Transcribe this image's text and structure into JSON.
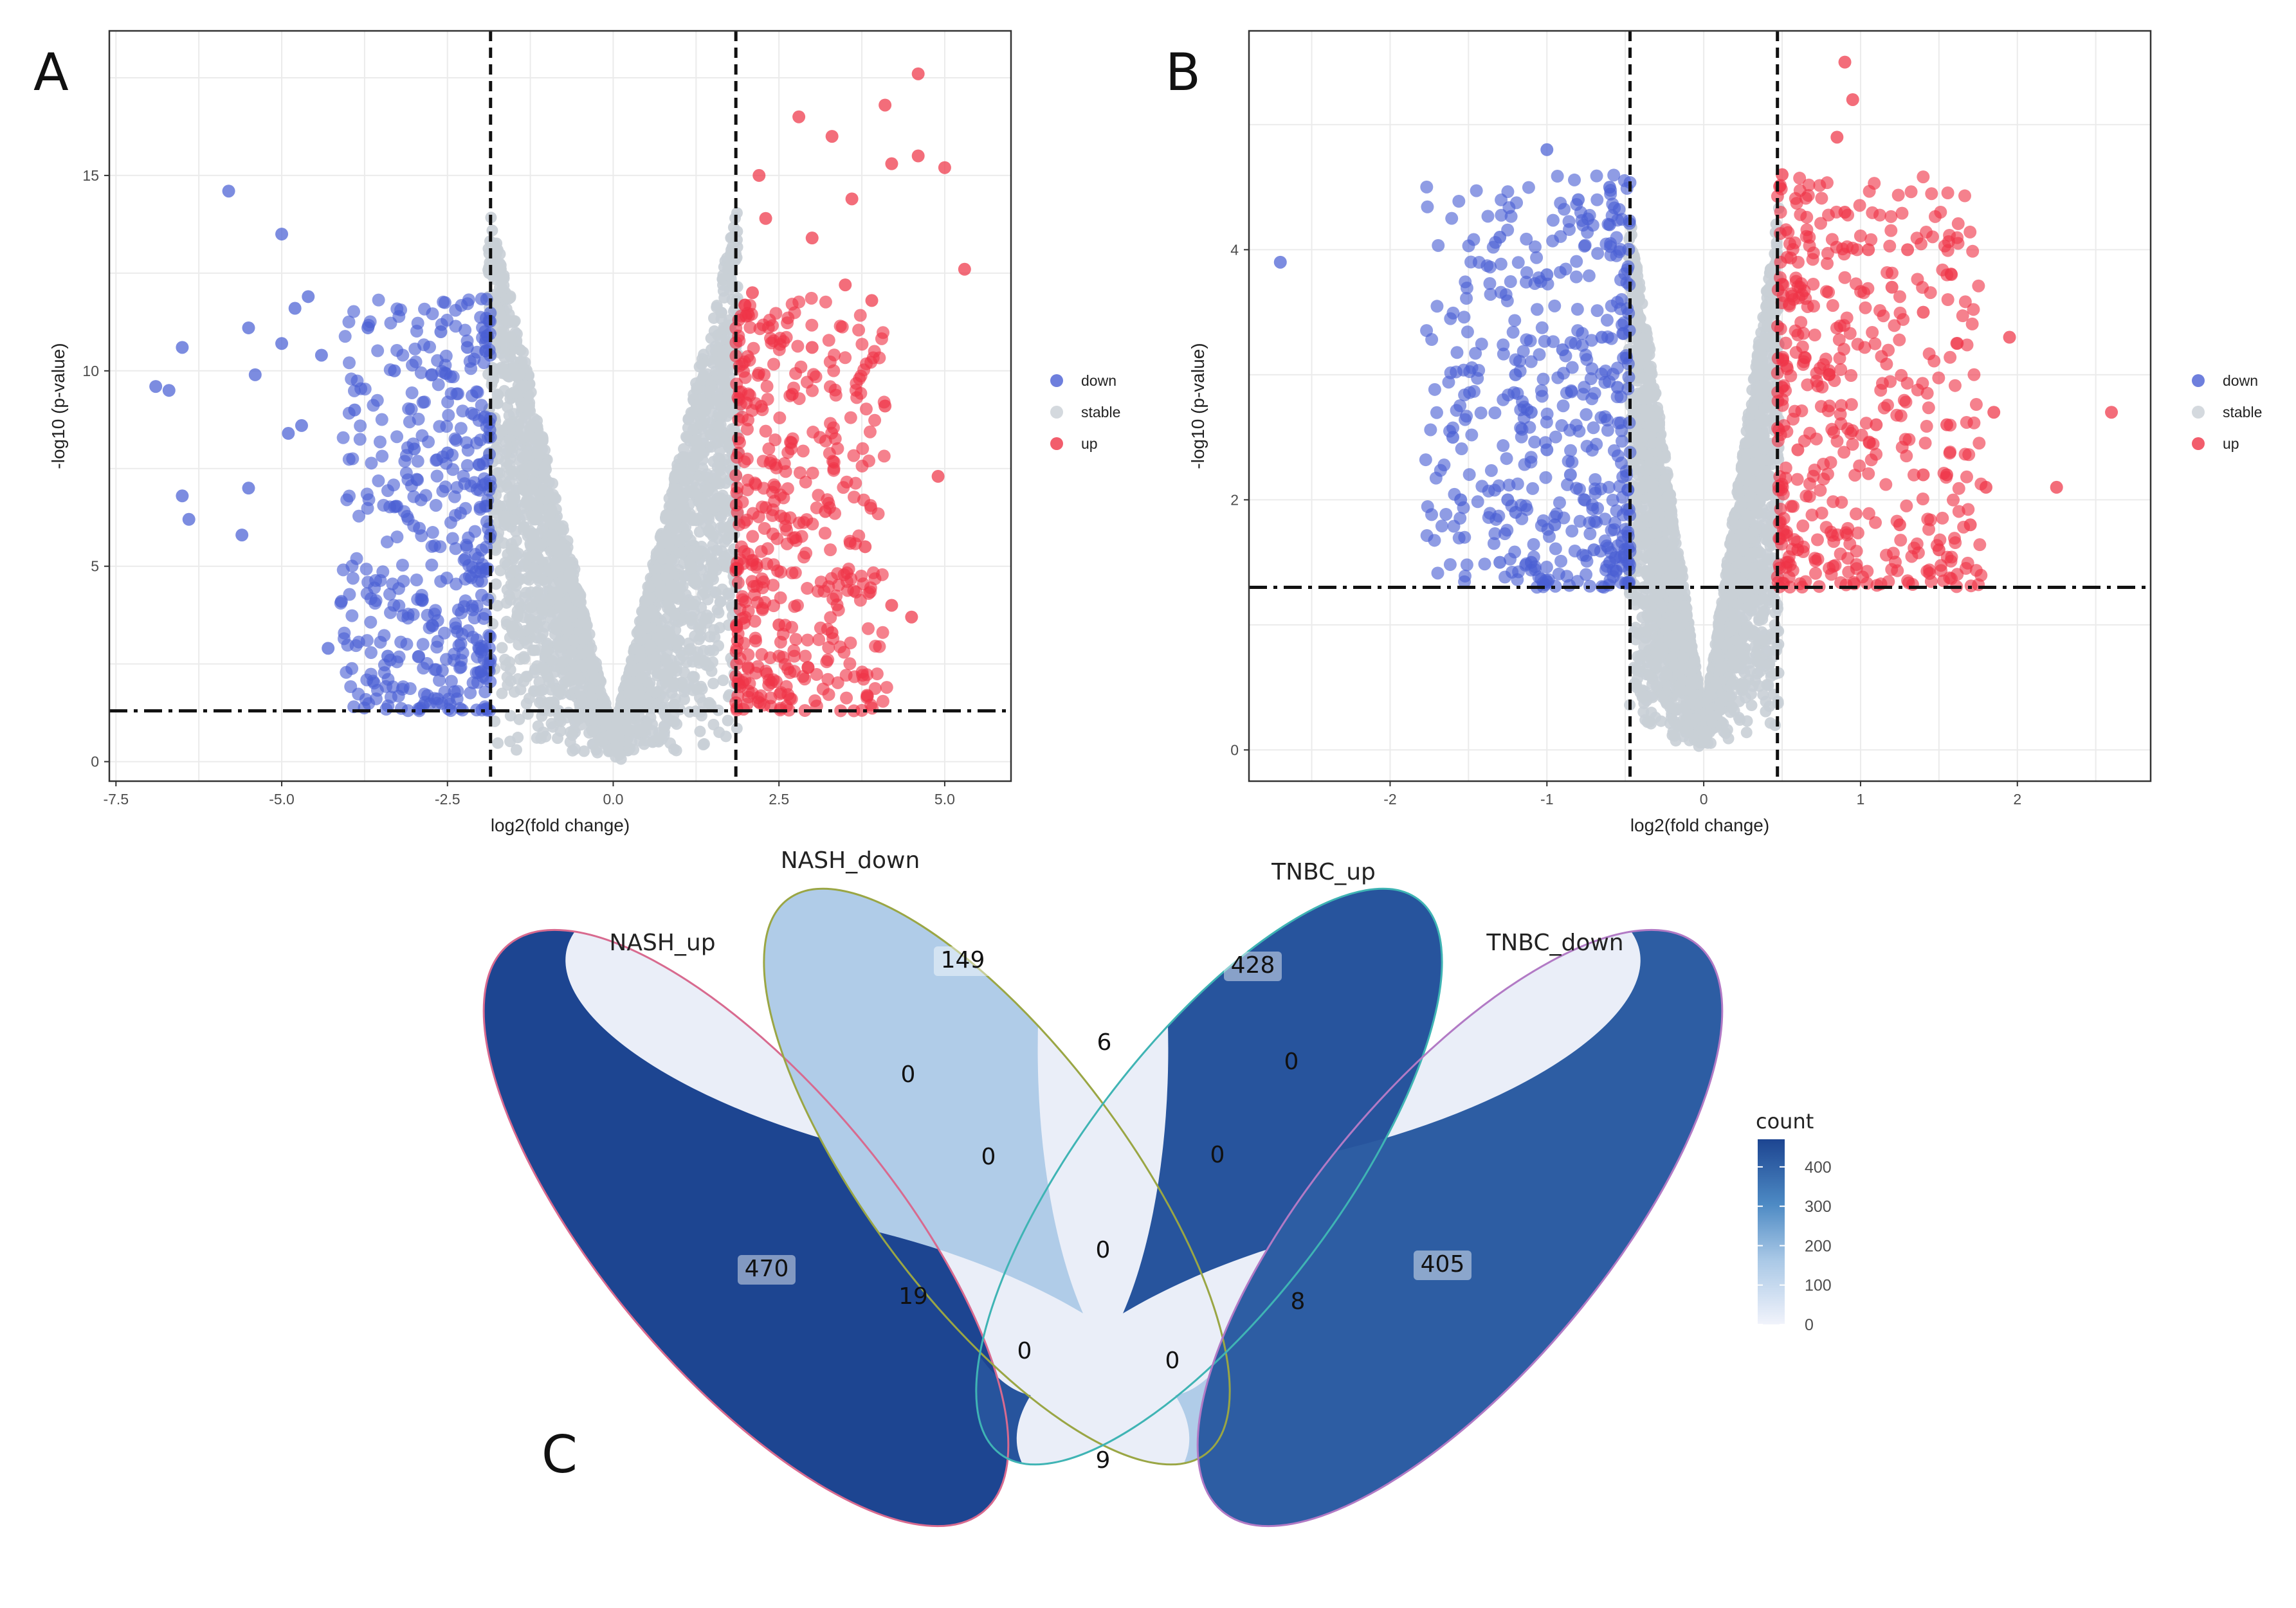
{
  "figure": {
    "panels": [
      "A",
      "B",
      "C"
    ],
    "colors": {
      "down": "#4a5fd4",
      "stable": "#c9cfd6",
      "up": "#ef3447",
      "grid": "#ebebeb",
      "panel_border": "#333333",
      "threshold_line": "#111111"
    }
  },
  "chart_data": [
    {
      "type": "scatter",
      "panel": "A",
      "title": "",
      "xlabel": "log2(fold change)",
      "ylabel": "-log10 (p-value)",
      "xlim": [
        -7.6,
        6.0
      ],
      "ylim": [
        -0.5,
        18.7
      ],
      "xticks": [
        -7.5,
        -5.0,
        -2.5,
        0.0,
        2.5,
        5.0
      ],
      "xtick_labels": [
        "-7.5",
        "-5.0",
        "-2.5",
        "0.0",
        "2.5",
        "5.0"
      ],
      "yticks": [
        0,
        5,
        10,
        15
      ],
      "ytick_labels": [
        "0",
        "5",
        "10",
        "15"
      ],
      "thresholds": {
        "x": [
          -1.85,
          1.85
        ],
        "y": 1.3
      },
      "legend": {
        "position": "right",
        "entries": [
          "down",
          "stable",
          "up"
        ]
      },
      "series": [
        {
          "name": "down",
          "color": "#4a5fd4",
          "points": [
            [
              -5.8,
              14.6
            ],
            [
              -5.0,
              13.5
            ],
            [
              -6.9,
              9.6
            ],
            [
              -6.7,
              9.5
            ],
            [
              -6.5,
              10.6
            ],
            [
              -5.5,
              11.1
            ],
            [
              -5.4,
              9.9
            ],
            [
              -5.0,
              10.7
            ],
            [
              -4.8,
              11.6
            ],
            [
              -4.6,
              11.9
            ],
            [
              -4.4,
              10.4
            ],
            [
              -3.7,
              11.1
            ],
            [
              -3.3,
              10.0
            ],
            [
              -6.5,
              6.8
            ],
            [
              -6.4,
              6.2
            ],
            [
              -5.6,
              5.8
            ],
            [
              -5.5,
              7.0
            ],
            [
              -4.9,
              8.4
            ],
            [
              -4.7,
              8.6
            ],
            [
              -4.1,
              4.1
            ],
            [
              -4.3,
              2.9
            ],
            [
              -3.4,
              2.7
            ],
            [
              -2.6,
              11.0
            ],
            [
              -2.2,
              10.6
            ],
            [
              -1.9,
              10.9
            ],
            [
              -3.9,
              9.0
            ],
            [
              -3.0,
              8.0
            ],
            [
              -2.5,
              7.9
            ]
          ]
        },
        {
          "name": "up",
          "color": "#ef3447",
          "points": [
            [
              4.6,
              17.6
            ],
            [
              4.1,
              16.8
            ],
            [
              2.8,
              16.5
            ],
            [
              3.3,
              16.0
            ],
            [
              4.6,
              15.5
            ],
            [
              5.0,
              15.2
            ],
            [
              4.2,
              15.3
            ],
            [
              2.2,
              15.0
            ],
            [
              5.3,
              12.6
            ],
            [
              4.9,
              7.3
            ],
            [
              4.5,
              3.7
            ],
            [
              3.6,
              14.4
            ],
            [
              3.0,
              13.4
            ],
            [
              2.3,
              13.9
            ],
            [
              3.9,
              11.8
            ],
            [
              4.1,
              9.1
            ],
            [
              2.7,
              9.4
            ],
            [
              3.2,
              6.4
            ],
            [
              3.8,
              5.5
            ],
            [
              4.2,
              4.0
            ],
            [
              3.5,
              12.2
            ],
            [
              2.1,
              12.0
            ],
            [
              3.0,
              10.6
            ],
            [
              2.5,
              3.5
            ],
            [
              3.3,
              3.3
            ],
            [
              2.0,
              11.4
            ]
          ]
        }
      ],
      "stable_region": "dense V-shaped cloud centred at log2FC 0, -log10(p) up to about 14"
    },
    {
      "type": "scatter",
      "panel": "B",
      "title": "",
      "xlabel": "log2(fold change)",
      "ylabel": "-log10 (p-value)",
      "xlim": [
        -2.9,
        2.85
      ],
      "ylim": [
        -0.25,
        5.75
      ],
      "xticks": [
        -2,
        -1,
        0,
        1,
        2
      ],
      "xtick_labels": [
        "-2",
        "-1",
        "0",
        "1",
        "2"
      ],
      "yticks": [
        0,
        2,
        4
      ],
      "ytick_labels": [
        "0",
        "2",
        "4"
      ],
      "thresholds": {
        "x": [
          -0.47,
          0.47
        ],
        "y": 1.3
      },
      "legend": {
        "position": "right",
        "entries": [
          "down",
          "stable",
          "up"
        ]
      },
      "series": [
        {
          "name": "down",
          "color": "#4a5fd4",
          "points": [
            [
              -2.7,
              3.9
            ],
            [
              -1.0,
              4.8
            ],
            [
              -0.8,
              4.4
            ],
            [
              -1.3,
              4.1
            ],
            [
              -1.0,
              3.8
            ],
            [
              -0.6,
              4.5
            ],
            [
              -0.6,
              4.2
            ],
            [
              -1.6,
              2.5
            ],
            [
              -1.55,
              2.0
            ],
            [
              -1.25,
              2.0
            ],
            [
              -1.2,
              1.9
            ],
            [
              -1.1,
              1.5
            ],
            [
              -1.0,
              2.4
            ],
            [
              -1.3,
              1.5
            ],
            [
              -0.9,
              3.2
            ],
            [
              -1.2,
              3.0
            ],
            [
              -1.1,
              2.7
            ],
            [
              -0.85,
              2.2
            ],
            [
              -0.95,
              1.8
            ],
            [
              -0.65,
              3.3
            ],
            [
              -0.55,
              2.9
            ],
            [
              -0.6,
              1.5
            ],
            [
              -0.7,
              1.6
            ]
          ]
        },
        {
          "name": "up",
          "color": "#ef3447",
          "points": [
            [
              0.9,
              5.5
            ],
            [
              0.95,
              5.2
            ],
            [
              0.85,
              4.9
            ],
            [
              0.5,
              4.6
            ],
            [
              1.3,
              4.0
            ],
            [
              1.05,
              4.0
            ],
            [
              0.9,
              4.3
            ],
            [
              1.2,
              3.7
            ],
            [
              1.4,
              3.5
            ],
            [
              1.55,
              2.6
            ],
            [
              1.55,
              2.2
            ],
            [
              1.8,
              2.1
            ],
            [
              1.95,
              3.3
            ],
            [
              2.25,
              2.1
            ],
            [
              2.6,
              2.7
            ],
            [
              1.85,
              2.7
            ],
            [
              1.7,
              1.8
            ],
            [
              1.5,
              1.6
            ],
            [
              1.25,
              1.8
            ],
            [
              1.4,
              2.2
            ],
            [
              1.1,
              2.6
            ],
            [
              0.8,
              3.0
            ],
            [
              0.6,
              2.4
            ],
            [
              0.6,
              1.6
            ],
            [
              0.5,
              2.9
            ]
          ]
        }
      ],
      "stable_region": "dense V-shaped cloud centred at log2FC 0, -log10(p) up to about 3.6"
    },
    {
      "type": "venn",
      "panel": "C",
      "sets": [
        "NASH_up",
        "NASH_down",
        "TNBC_up",
        "TNBC_down"
      ],
      "regions": [
        {
          "sets": [
            "NASH_up"
          ],
          "count": 470
        },
        {
          "sets": [
            "NASH_down"
          ],
          "count": 149
        },
        {
          "sets": [
            "TNBC_up"
          ],
          "count": 428
        },
        {
          "sets": [
            "TNBC_down"
          ],
          "count": 405
        },
        {
          "sets": [
            "NASH_up",
            "NASH_down"
          ],
          "count": 0
        },
        {
          "sets": [
            "NASH_down",
            "TNBC_up"
          ],
          "count": 6
        },
        {
          "sets": [
            "TNBC_up",
            "TNBC_down"
          ],
          "count": 0
        },
        {
          "sets": [
            "NASH_up",
            "TNBC_up"
          ],
          "count": 19
        },
        {
          "sets": [
            "NASH_down",
            "TNBC_down"
          ],
          "count": 8
        },
        {
          "sets": [
            "NASH_up",
            "TNBC_down"
          ],
          "count": 9
        },
        {
          "sets": [
            "NASH_up",
            "NASH_down",
            "TNBC_up"
          ],
          "count": 0
        },
        {
          "sets": [
            "NASH_down",
            "TNBC_up",
            "TNBC_down"
          ],
          "count": 0
        },
        {
          "sets": [
            "NASH_up",
            "TNBC_up",
            "TNBC_down"
          ],
          "count": 0
        },
        {
          "sets": [
            "NASH_up",
            "NASH_down",
            "TNBC_down"
          ],
          "count": 0
        },
        {
          "sets": [
            "NASH_up",
            "NASH_down",
            "TNBC_up",
            "TNBC_down"
          ],
          "count": 0
        }
      ],
      "color_scale": {
        "title": "count",
        "ticks": [
          0,
          100,
          200,
          300,
          400
        ],
        "tick_labels": [
          "0",
          "100",
          "200",
          "300",
          "400"
        ],
        "low_color": "#f1f3fb",
        "high_color": "#1d4591",
        "max": 470
      }
    }
  ]
}
